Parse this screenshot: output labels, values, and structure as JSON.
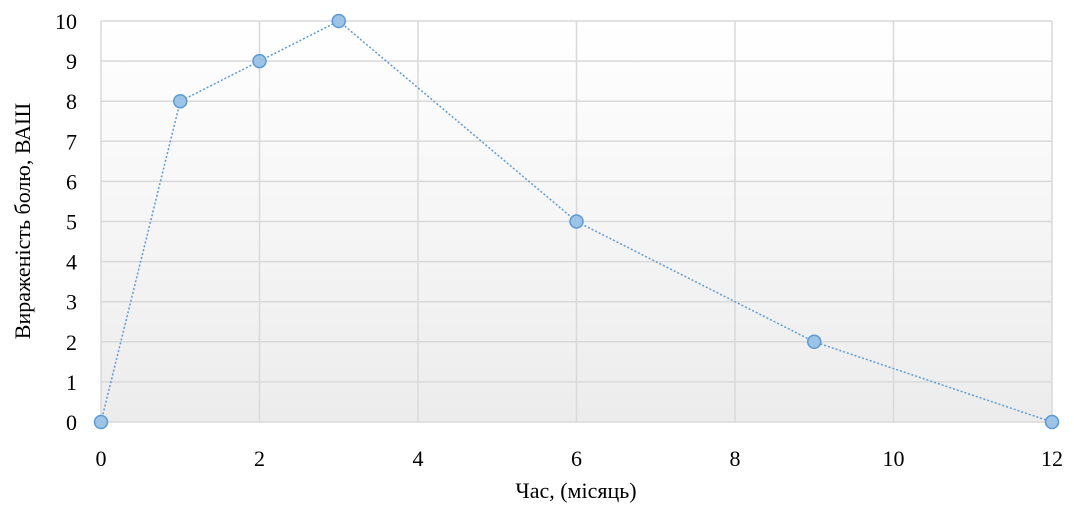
{
  "chart_data": {
    "type": "scatter",
    "xlabel": "Час, (місяць)",
    "ylabel": "Вираженість болю, ВАШ",
    "xlim": [
      0,
      12
    ],
    "ylim": [
      0,
      10
    ],
    "x_ticks": [
      0,
      2,
      4,
      6,
      8,
      10,
      12
    ],
    "y_ticks": [
      0,
      1,
      2,
      3,
      4,
      5,
      6,
      7,
      8,
      9,
      10
    ],
    "grid": true,
    "legend": "none",
    "series": [
      {
        "x": [
          0,
          1,
          2,
          3,
          6,
          9,
          12
        ],
        "y": [
          0,
          8,
          9,
          10,
          5,
          2,
          0
        ],
        "line_style": "dotted",
        "line_color": "#5b9bd5",
        "marker_fill": "#9dc3e6",
        "marker_edge": "#5b9bd5"
      }
    ],
    "background_gradient": [
      "#ffffff",
      "#ececec"
    ]
  }
}
